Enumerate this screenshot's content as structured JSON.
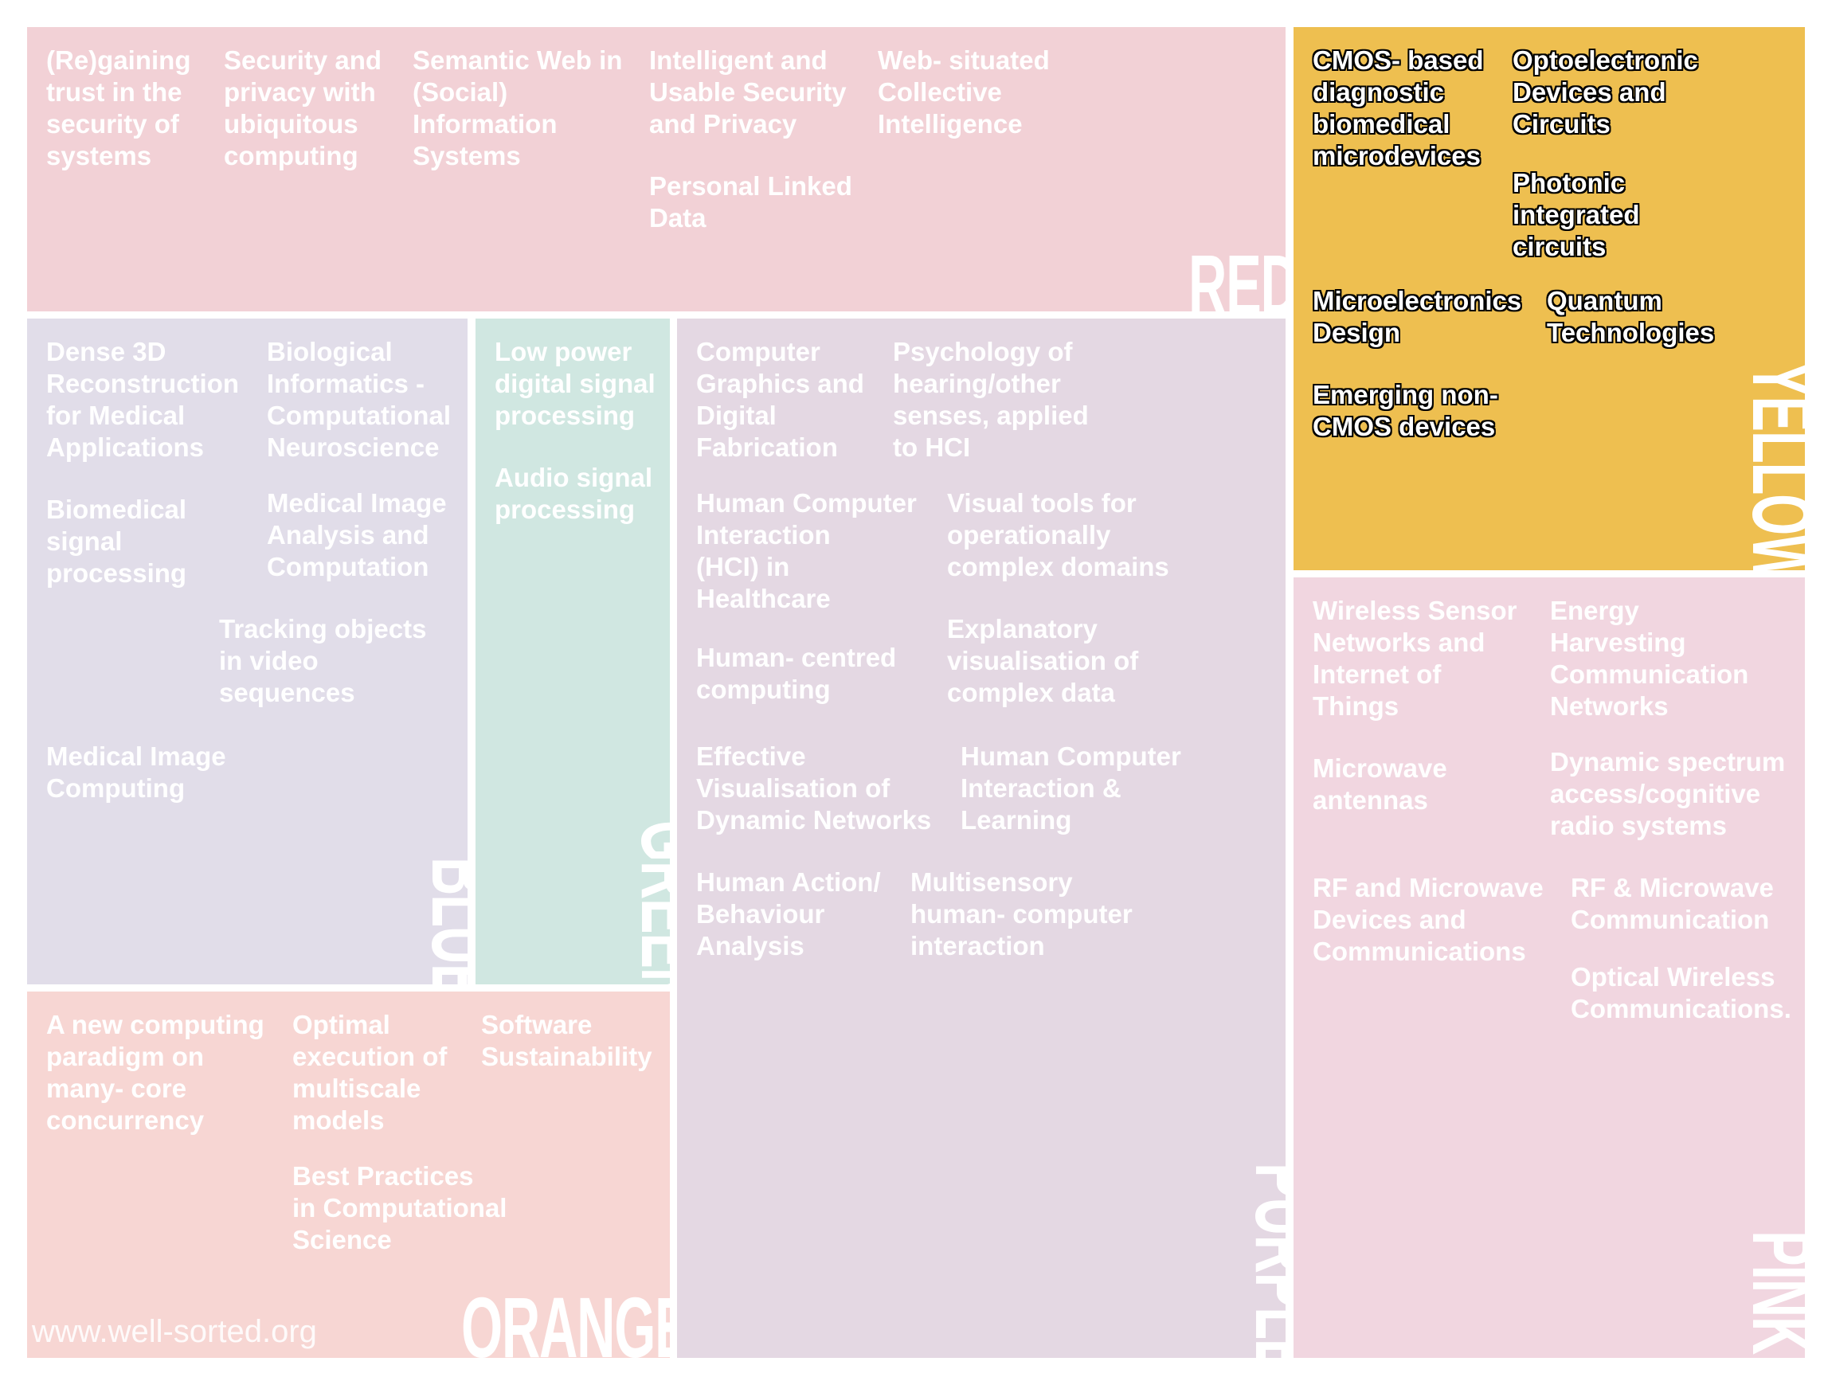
{
  "panels": {
    "red": {
      "label": "RED",
      "color": "#f2d1d6",
      "topics": [
        "(Re)gaining\ntrust in the\nsecurity of\nsystems",
        "Security and\nprivacy with\nubiquitous\ncomputing",
        "Semantic Web in\n(Social)\nInformation\nSystems",
        "Intelligent and\nUsable Security\nand Privacy",
        "Personal Linked\nData",
        "Web- situated\nCollective\nIntelligence"
      ]
    },
    "yellow": {
      "label": "YELLOW",
      "color": "#eebf50",
      "topics": [
        "CMOS- based\ndiagnostic\nbiomedical\nmicrodevices",
        "Optoelectronic\nDevices and\nCircuits",
        "Photonic\nintegrated\ncircuits",
        "Microelectronics\nDesign",
        "Quantum\nTechnologies",
        "Emerging non-\nCMOS devices"
      ]
    },
    "blue": {
      "label": "BLUE",
      "color": "#e1dde9",
      "topics": [
        "Dense 3D\nReconstruction\nfor Medical\nApplications",
        "Biological\nInformatics -\nComputational\nNeuroscience",
        "Biomedical\nsignal\nprocessing",
        "Medical Image\nAnalysis and\nComputation",
        "Tracking objects\nin video\nsequences",
        "Medical Image\nComputing"
      ]
    },
    "green": {
      "label": "GREEN",
      "color": "#d0e7e1",
      "topics": [
        "Low power\ndigital signal\nprocessing",
        "Audio signal\nprocessing"
      ]
    },
    "purple": {
      "label": "PURPLE",
      "color": "#e4d8e3",
      "topics": [
        "Computer\nGraphics and\nDigital\nFabrication",
        "Psychology of\nhearing/other\nsenses, applied\nto HCI",
        "Human Computer\nInteraction\n(HCI) in\nHealthcare",
        "Visual tools for\noperationally\ncomplex domains",
        "Human- centred\ncomputing",
        "Explanatory\nvisualisation of\ncomplex data",
        "Effective\nVisualisation of\nDynamic Networks",
        "Human Computer\nInteraction &\nLearning",
        "Human Action/\nBehaviour\nAnalysis",
        "Multisensory\nhuman- computer\ninteraction"
      ]
    },
    "pink": {
      "label": "PINK",
      "color": "#f1d6e0",
      "topics": [
        "Wireless Sensor\nNetworks and\nInternet of\nThings",
        "Energy\nHarvesting\nCommunication\nNetworks",
        "Microwave\nantennas",
        "Dynamic spectrum\naccess/cognitive\nradio systems",
        "RF and Microwave\nDevices and\nCommunications",
        "RF & Microwave\nCommunication",
        "Optical Wireless\nCommunications."
      ]
    },
    "orange": {
      "label": "ORANGE",
      "color": "#f7d6d3",
      "topics": [
        "A new computing\nparadigm on\nmany- core\nconcurrency",
        "Optimal\nexecution of\nmultiscale\nmodels",
        "Software\nSustainability",
        "Best Practices\nin Computational\nScience"
      ]
    }
  },
  "watermark": "www.well-sorted.org"
}
